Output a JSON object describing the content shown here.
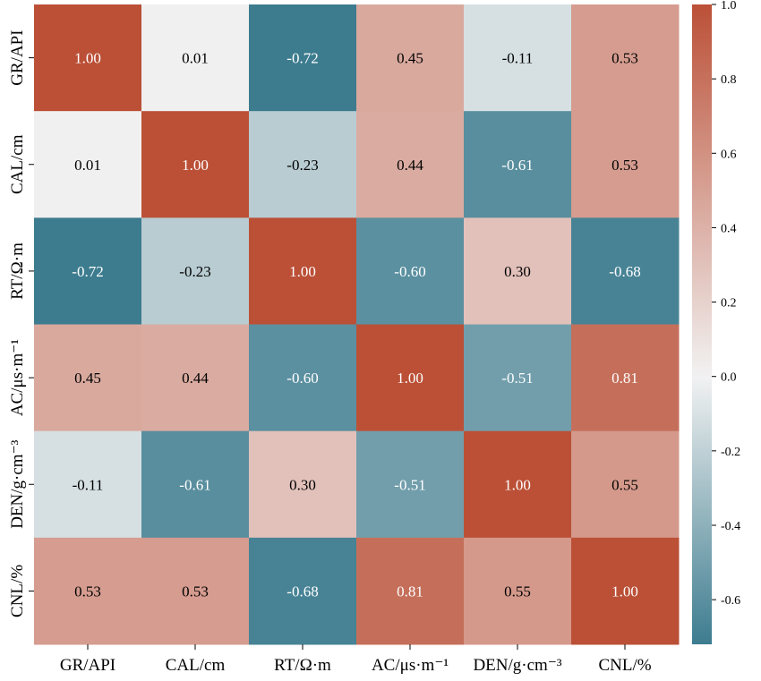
{
  "chart_data": {
    "type": "heatmap",
    "title": "",
    "xlabel": "",
    "ylabel": "",
    "x_labels": [
      "GR/API",
      "CAL/cm",
      "RT/Ω·m",
      "AC/μs·m⁻¹",
      "DEN/g·cm⁻³",
      "CNL/%"
    ],
    "y_labels": [
      "GR/API",
      "CAL/cm",
      "RT/Ω·m",
      "AC/μs·m⁻¹",
      "DEN/g·cm⁻³",
      "CNL/%"
    ],
    "values": [
      [
        1.0,
        0.01,
        -0.72,
        0.45,
        -0.11,
        0.53
      ],
      [
        0.01,
        1.0,
        -0.23,
        0.44,
        -0.61,
        0.53
      ],
      [
        -0.72,
        -0.23,
        1.0,
        -0.6,
        0.3,
        -0.68
      ],
      [
        0.45,
        0.44,
        -0.6,
        1.0,
        -0.51,
        0.81
      ],
      [
        -0.11,
        -0.61,
        0.3,
        -0.51,
        1.0,
        0.55
      ],
      [
        0.53,
        0.53,
        -0.68,
        0.81,
        0.55,
        1.0
      ]
    ],
    "value_labels": [
      [
        "1.00",
        "0.01",
        "-0.72",
        "0.45",
        "-0.11",
        "0.53"
      ],
      [
        "0.01",
        "1.00",
        "-0.23",
        "0.44",
        "-0.61",
        "0.53"
      ],
      [
        "-0.72",
        "-0.23",
        "1.00",
        "-0.60",
        "0.30",
        "-0.68"
      ],
      [
        "0.45",
        "0.44",
        "-0.60",
        "1.00",
        "-0.51",
        "0.81"
      ],
      [
        "-0.11",
        "-0.61",
        "0.30",
        "-0.51",
        "1.00",
        "0.55"
      ],
      [
        "0.53",
        "0.53",
        "-0.68",
        "0.81",
        "0.55",
        "1.00"
      ]
    ],
    "color_range": [
      -0.72,
      1.0
    ],
    "colorbar": {
      "ticks": [
        1.0,
        0.8,
        0.6,
        0.4,
        0.2,
        0.0,
        -0.2,
        -0.4,
        -0.6
      ],
      "tick_labels": [
        "1.0",
        "0.8",
        "0.6",
        "0.4",
        "0.2",
        "0.0",
        "-0.2",
        "-0.4",
        "-0.6"
      ],
      "placement": "right"
    },
    "colormap": {
      "negative": "#3d7c8f",
      "neutral": "#f2f2f2",
      "positive": "#bb5037"
    },
    "grid": false
  }
}
